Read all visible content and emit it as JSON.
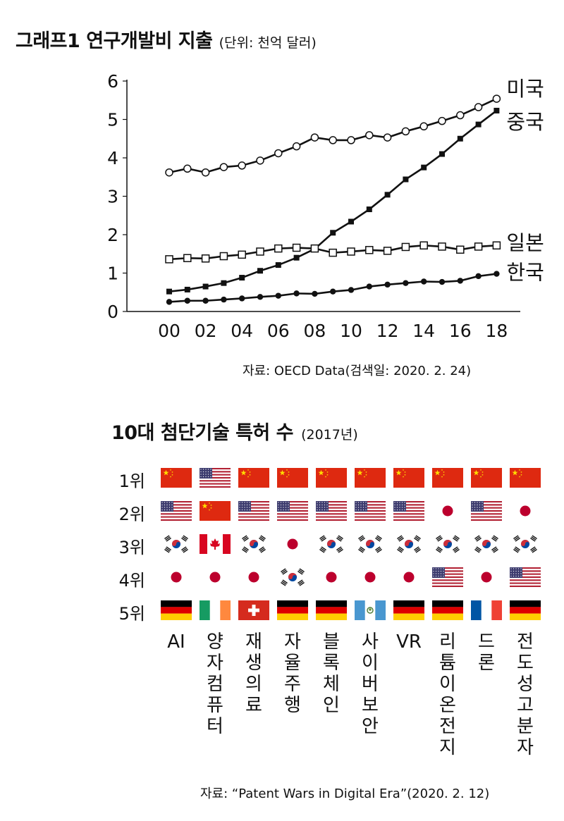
{
  "graph1": {
    "title": "그래프1  연구개발비 지출",
    "unit": "(단위: 천억 달러)",
    "source": "자료: OECD Data(검색일: 2020. 2. 24)"
  },
  "chart_data": [
    {
      "type": "line",
      "title": "그래프1  연구개발비 지출",
      "subtitle": "(단위: 천억 달러)",
      "x": [
        "00",
        "01",
        "02",
        "03",
        "04",
        "05",
        "06",
        "07",
        "08",
        "09",
        "10",
        "11",
        "12",
        "13",
        "14",
        "15",
        "16",
        "17",
        "18"
      ],
      "xticks": [
        "00",
        "02",
        "04",
        "06",
        "08",
        "10",
        "12",
        "14",
        "16",
        "18"
      ],
      "yticks": [
        "0",
        "1",
        "2",
        "3",
        "4",
        "5",
        "6"
      ],
      "ylim": [
        0,
        6
      ],
      "grid": false,
      "series": [
        {
          "name": "미국",
          "marker": "open-circle",
          "values": [
            3.62,
            3.72,
            3.62,
            3.76,
            3.8,
            3.93,
            4.12,
            4.3,
            4.53,
            4.46,
            4.46,
            4.59,
            4.53,
            4.69,
            4.82,
            4.96,
            5.11,
            5.32,
            5.54
          ]
        },
        {
          "name": "중국",
          "marker": "filled-square",
          "values": [
            0.52,
            0.57,
            0.65,
            0.74,
            0.88,
            1.06,
            1.21,
            1.4,
            1.63,
            2.05,
            2.34,
            2.66,
            3.04,
            3.44,
            3.75,
            4.1,
            4.5,
            4.87,
            5.23
          ]
        },
        {
          "name": "일본",
          "marker": "open-square",
          "values": [
            1.36,
            1.39,
            1.38,
            1.44,
            1.48,
            1.56,
            1.64,
            1.66,
            1.64,
            1.53,
            1.56,
            1.6,
            1.58,
            1.68,
            1.72,
            1.69,
            1.61,
            1.69,
            1.72
          ]
        },
        {
          "name": "한국",
          "marker": "filled-circle",
          "values": [
            0.25,
            0.28,
            0.28,
            0.31,
            0.34,
            0.38,
            0.41,
            0.47,
            0.46,
            0.52,
            0.56,
            0.65,
            0.7,
            0.74,
            0.78,
            0.77,
            0.8,
            0.92,
            0.98
          ]
        }
      ]
    },
    {
      "type": "table",
      "title": "10대 첨단기술 특허 수",
      "subtitle": "(2017년)",
      "rows": [
        "1위",
        "2위",
        "3위",
        "4위",
        "5위"
      ],
      "columns": [
        "AI",
        "양자컴퓨터",
        "재생의료",
        "자율주행",
        "블록체인",
        "사이버보안",
        "VR",
        "리튬이온전지",
        "드론",
        "전도성고분자"
      ],
      "cells": [
        [
          "china",
          "usa",
          "china",
          "china",
          "china",
          "china",
          "china",
          "china",
          "china",
          "china"
        ],
        [
          "usa",
          "china",
          "usa",
          "usa",
          "usa",
          "usa",
          "usa",
          "japan",
          "usa",
          "japan"
        ],
        [
          "korea",
          "canada",
          "korea",
          "japan",
          "korea",
          "korea",
          "korea",
          "korea",
          "korea",
          "korea"
        ],
        [
          "japan",
          "japan",
          "japan",
          "korea",
          "japan",
          "japan",
          "japan",
          "usa",
          "japan",
          "usa"
        ],
        [
          "germany",
          "ireland",
          "switzerland",
          "germany",
          "germany",
          "guatemala",
          "germany",
          "germany",
          "france",
          "germany"
        ]
      ]
    }
  ],
  "graph2": {
    "title": "10대 첨단기술 특허 수",
    "year": "(2017년)",
    "source": "자료: “Patent Wars in Digital Era”(2020. 2. 12)"
  },
  "colors": {
    "ink": "#111111",
    "china_red": "#de2910",
    "china_star": "#ffde00",
    "usa_red": "#b22234",
    "usa_blue": "#3c3b6e",
    "japan_red": "#bc002d",
    "korea_red": "#cd2e3a",
    "korea_blue": "#0047a0",
    "germany_red": "#dd0000",
    "germany_gold": "#ffce00",
    "ireland_green": "#169b62",
    "ireland_orange": "#ff883e",
    "france_blue": "#0055a4",
    "france_red": "#ef4135",
    "guatemala_blue": "#4997d0"
  }
}
